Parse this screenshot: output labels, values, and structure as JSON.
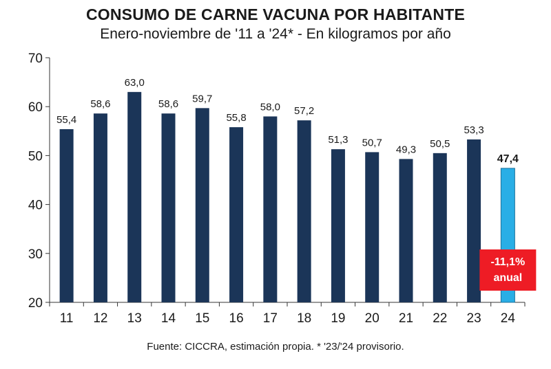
{
  "header": {
    "title": "CONSUMO DE CARNE VACUNA POR HABITANTE",
    "subtitle": "Enero-noviembre de '11 a '24* - En kilogramos por año"
  },
  "footer": {
    "source": "Fuente: CICCRA, estimación propia. * '23/'24 provisorio."
  },
  "colors": {
    "bar": "#1b3558",
    "highlight_bar": "#29aee6",
    "badge": "#ee1c25",
    "axis": "#333333"
  },
  "chart_data": {
    "type": "bar",
    "categories": [
      "11",
      "12",
      "13",
      "14",
      "15",
      "16",
      "17",
      "18",
      "19",
      "20",
      "21",
      "22",
      "23",
      "24"
    ],
    "values": [
      55.4,
      58.6,
      63.0,
      58.6,
      59.7,
      55.8,
      58.0,
      57.2,
      51.3,
      50.7,
      49.3,
      50.5,
      53.3,
      47.4
    ],
    "value_labels": [
      "55,4",
      "58,6",
      "63,0",
      "58,6",
      "59,7",
      "55,8",
      "58,0",
      "57,2",
      "51,3",
      "50,7",
      "49,3",
      "50,5",
      "53,3",
      "47,4"
    ],
    "highlight_index": 13,
    "ylim": [
      20,
      70
    ],
    "yticks": [
      20,
      30,
      40,
      50,
      60,
      70
    ],
    "ytick_labels": [
      "20",
      "30",
      "40",
      "50",
      "60",
      "70"
    ],
    "grid": false,
    "annotation": {
      "lines": [
        "-11,1%",
        "anual"
      ]
    }
  }
}
